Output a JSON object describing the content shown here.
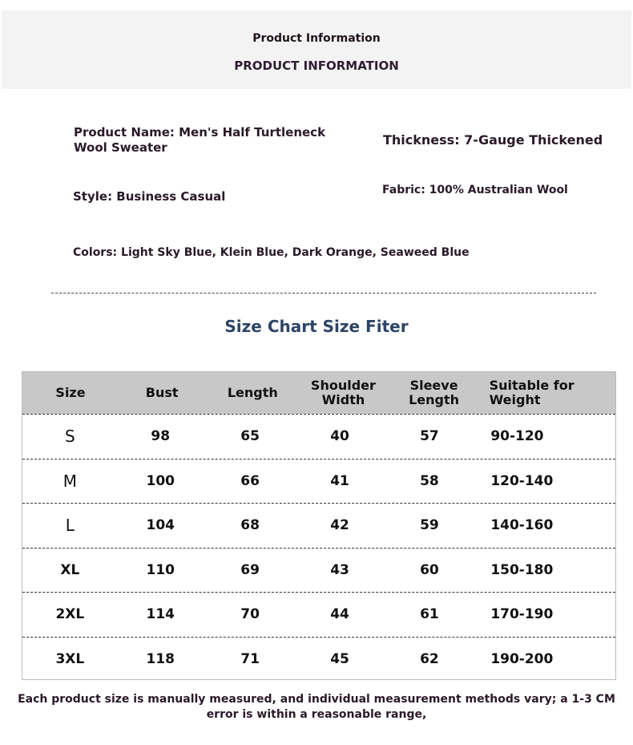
{
  "banner": {
    "title": "Product Information",
    "subtitle": "PRODUCT INFORMATION"
  },
  "info": {
    "product_name": "Product Name: Men's Half Turtleneck Wool Sweater",
    "thickness": "Thickness: 7-Gauge Thickened",
    "style": "Style: Business Casual",
    "fabric": "Fabric: 100% Australian Wool",
    "colors": "Colors: Light Sky Blue, Klein Blue, Dark Orange, Seaweed Blue"
  },
  "size_chart": {
    "title": "Size Chart Size Fiter",
    "headers": [
      "Size",
      "Bust",
      "Length",
      "Shoulder Width",
      "Sleeve Length",
      "Suitable for Weight"
    ],
    "rows": [
      [
        "S",
        "98",
        "65",
        "40",
        "57",
        "90-120"
      ],
      [
        "M",
        "100",
        "66",
        "41",
        "58",
        "120-140"
      ],
      [
        "L",
        "104",
        "68",
        "42",
        "59",
        "140-160"
      ],
      [
        "XL",
        "110",
        "69",
        "43",
        "60",
        "150-180"
      ],
      [
        "2XL",
        "114",
        "70",
        "44",
        "61",
        "170-190"
      ],
      [
        "3XL",
        "118",
        "71",
        "45",
        "62",
        "190-200"
      ]
    ]
  },
  "note": "Each product size is manually measured, and individual measurement methods vary; a 1-3 CM error is within a reasonable range,"
}
